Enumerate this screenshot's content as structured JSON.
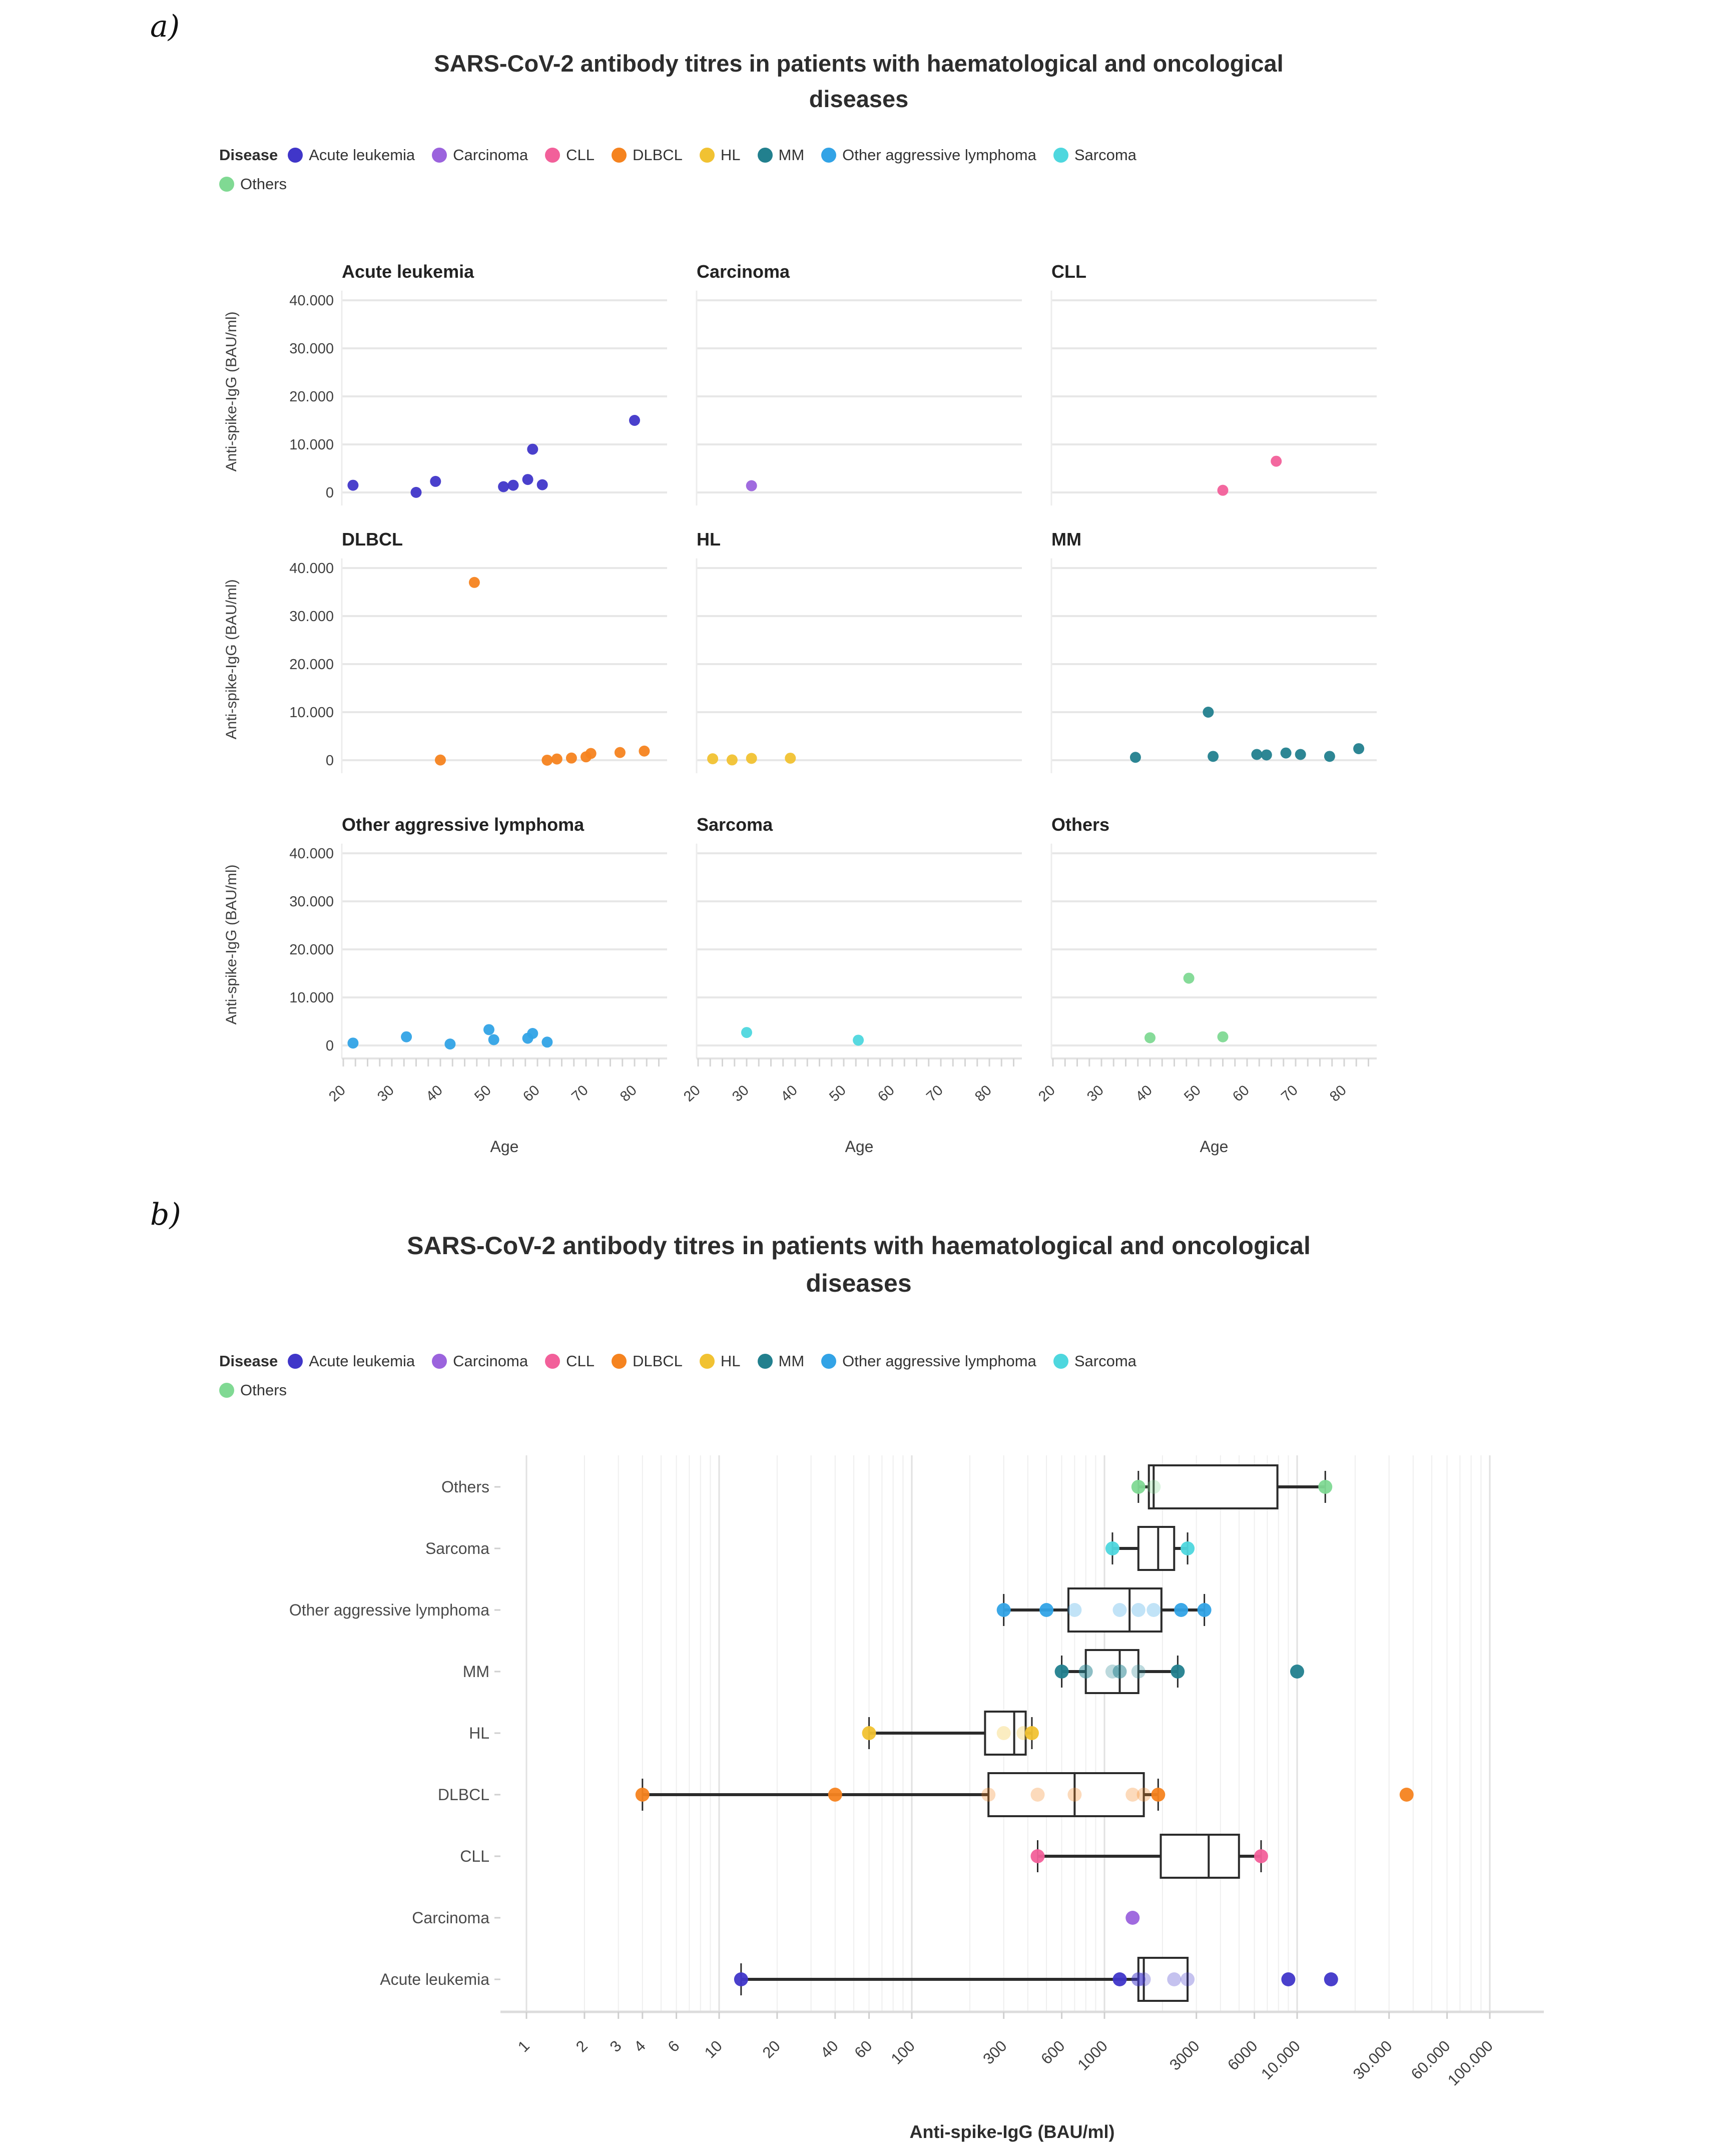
{
  "page": {
    "panel_a_label": "a)",
    "panel_b_label": "b)",
    "title_lines": [
      "SARS-CoV-2 antibody titres in patients with haematological and oncological",
      "diseases"
    ],
    "legend_title": "Disease"
  },
  "legend": {
    "row1": [
      {
        "name": "Acute leukemia",
        "color": "#4036c9"
      },
      {
        "name": "Carcinoma",
        "color": "#9b63dd"
      },
      {
        "name": "CLL",
        "color": "#f2609a"
      },
      {
        "name": "DLBCL",
        "color": "#f5831f"
      },
      {
        "name": "HL",
        "color": "#f1c232"
      },
      {
        "name": "MM",
        "color": "#22808e"
      },
      {
        "name": "Other aggressive lymphoma",
        "color": "#32a3e6"
      },
      {
        "name": "Sarcoma",
        "color": "#4ed7de"
      }
    ],
    "row2": [
      {
        "name": "Others",
        "color": "#80d993"
      }
    ]
  },
  "chart_data": [
    {
      "type": "scatter",
      "title": "SARS-CoV-2 antibody titres in patients with haematological and oncological diseases",
      "xlabel": "Age",
      "ylabel": "Anti-spike-IgG (BAU/ml)",
      "xlim": [
        19.7,
        87
      ],
      "ylim": [
        0,
        42000
      ],
      "x_major_ticks": [
        20,
        30,
        40,
        50,
        60,
        70,
        80
      ],
      "x_minor_step": 2.5,
      "y_ticks": [
        0,
        10000,
        20000,
        30000,
        40000
      ],
      "y_tick_labels": [
        "0",
        "10.000",
        "20.000",
        "30.000",
        "40.000"
      ],
      "grid": true,
      "facets": [
        {
          "title": "Acute leukemia",
          "color": "#4036c9",
          "points": [
            [
              22,
              1500
            ],
            [
              35,
              13
            ],
            [
              39,
              2300
            ],
            [
              53,
              1200
            ],
            [
              55,
              1500
            ],
            [
              58,
              2700
            ],
            [
              59,
              9000
            ],
            [
              61,
              1600
            ],
            [
              80,
              15000
            ]
          ]
        },
        {
          "title": "Carcinoma",
          "color": "#9b63dd",
          "points": [
            [
              31,
              1400
            ]
          ]
        },
        {
          "title": "CLL",
          "color": "#f2609a",
          "points": [
            [
              55,
              450
            ],
            [
              66,
              6500
            ]
          ]
        },
        {
          "title": "DLBCL",
          "color": "#f5831f",
          "points": [
            [
              40,
              40
            ],
            [
              47,
              37000
            ],
            [
              62,
              4
            ],
            [
              64,
              250
            ],
            [
              67,
              450
            ],
            [
              70,
              700
            ],
            [
              71,
              1400
            ],
            [
              77,
              1600
            ],
            [
              82,
              1900
            ]
          ]
        },
        {
          "title": "HL",
          "color": "#f1c232",
          "points": [
            [
              23,
              300
            ],
            [
              27,
              60
            ],
            [
              31,
              380
            ],
            [
              39,
              420
            ]
          ]
        },
        {
          "title": "MM",
          "color": "#22808e",
          "points": [
            [
              37,
              600
            ],
            [
              52,
              10000
            ],
            [
              53,
              800
            ],
            [
              62,
              1200
            ],
            [
              64,
              1100
            ],
            [
              68,
              1500
            ],
            [
              71,
              1200
            ],
            [
              77,
              800
            ],
            [
              83,
              2400
            ]
          ]
        },
        {
          "title": "Other aggressive lymphoma",
          "color": "#32a3e6",
          "points": [
            [
              22,
              500
            ],
            [
              33,
              1800
            ],
            [
              42,
              300
            ],
            [
              50,
              3300
            ],
            [
              51,
              1200
            ],
            [
              58,
              1500
            ],
            [
              59,
              2500
            ],
            [
              62,
              700
            ]
          ]
        },
        {
          "title": "Sarcoma",
          "color": "#4ed7de",
          "points": [
            [
              30,
              2700
            ],
            [
              53,
              1100
            ]
          ]
        },
        {
          "title": "Others",
          "color": "#80d993",
          "points": [
            [
              40,
              1600
            ],
            [
              48,
              14000
            ],
            [
              55,
              1800
            ]
          ]
        }
      ]
    },
    {
      "type": "box",
      "title": "SARS-CoV-2 antibody titres in patients with haematological and oncological diseases",
      "xlabel": "Anti-spike-IgG (BAU/ml)",
      "xscale": "log",
      "xlim": [
        0.75,
        150000
      ],
      "x_tick_values": [
        1,
        2,
        3,
        4,
        6,
        10,
        20,
        40,
        60,
        100,
        300,
        600,
        1000,
        3000,
        6000,
        10000,
        30000,
        60000,
        100000
      ],
      "x_tick_labels": [
        "1",
        "2",
        "3",
        "4",
        "6",
        "10",
        "20",
        "40",
        "60",
        "100",
        "300",
        "600",
        "1000",
        "3000",
        "6000",
        "10.000",
        "30.000",
        "60.000",
        "100.000"
      ],
      "legend_position": "top",
      "rows_top_to_bottom": [
        {
          "label": "Others",
          "color": "#80d993",
          "box": {
            "low": 1500,
            "q1": 1700,
            "median": 1800,
            "q3": 7900,
            "high": 14000,
            "outliers": []
          },
          "points": [
            1500,
            1800,
            14000
          ]
        },
        {
          "label": "Sarcoma",
          "color": "#4ed7de",
          "box": {
            "low": 1100,
            "q1": 1500,
            "median": 1900,
            "q3": 2300,
            "high": 2700,
            "outliers": []
          },
          "points": [
            1100,
            2700
          ]
        },
        {
          "label": "Other aggressive lymphoma",
          "color": "#32a3e6",
          "box": {
            "low": 300,
            "q1": 650,
            "median": 1350,
            "q3": 1975,
            "high": 3300,
            "outliers": []
          },
          "points": [
            300,
            500,
            700,
            1200,
            1500,
            1800,
            2500,
            3300
          ]
        },
        {
          "label": "MM",
          "color": "#22808e",
          "box": {
            "low": 600,
            "q1": 800,
            "median": 1200,
            "q3": 1500,
            "high": 2400,
            "outliers": [
              10000
            ]
          },
          "points": [
            600,
            800,
            800,
            1100,
            1200,
            1200,
            1500,
            2400,
            10000
          ]
        },
        {
          "label": "HL",
          "color": "#f1c232",
          "box": {
            "low": 60,
            "q1": 240,
            "median": 340,
            "q3": 390,
            "high": 420,
            "outliers": []
          },
          "points": [
            60,
            300,
            380,
            420
          ]
        },
        {
          "label": "DLBCL",
          "color": "#f5831f",
          "box": {
            "low": 4,
            "q1": 250,
            "median": 700,
            "q3": 1600,
            "high": 1900,
            "outliers": [
              37000
            ]
          },
          "points": [
            4,
            40,
            250,
            450,
            700,
            1400,
            1600,
            1900,
            37000
          ]
        },
        {
          "label": "CLL",
          "color": "#f2609a",
          "box": {
            "low": 450,
            "q1": 1960,
            "median": 3475,
            "q3": 4990,
            "high": 6500,
            "outliers": []
          },
          "points": [
            450,
            6500
          ]
        },
        {
          "label": "Carcinoma",
          "color": "#9b63dd",
          "box": null,
          "points": [
            1400
          ]
        },
        {
          "label": "Acute leukemia",
          "color": "#4036c9",
          "box": {
            "low": 13,
            "q1": 1500,
            "median": 1600,
            "q3": 2700,
            "high": 2700,
            "outliers": [
              9000,
              15000
            ]
          },
          "points": [
            13,
            1200,
            1500,
            1500,
            1600,
            2300,
            2700,
            9000,
            15000
          ]
        }
      ]
    }
  ]
}
